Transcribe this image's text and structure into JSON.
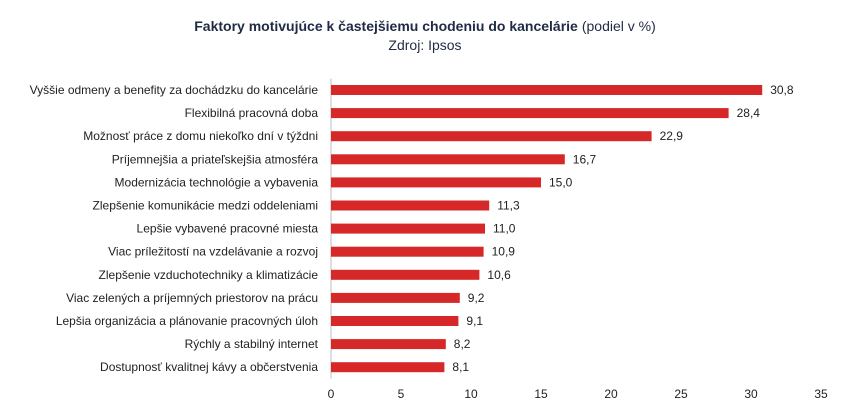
{
  "chart_data": {
    "type": "bar",
    "orientation": "horizontal",
    "title": "Faktory motivujúce k častejšiemu chodeniu do kancelárie",
    "title_suffix": "(podiel v %)",
    "subtitle": "Zdroj: Ipsos",
    "categories": [
      "Vyššie odmeny a benefity za dochádzku do kancelárie",
      "Flexibilná pracovná doba",
      "Možnosť práce z domu niekoľko dní v týždni",
      "Príjemnejšia a priateľskejšia atmosféra",
      "Modernizácia technológie a vybavenia",
      "Zlepšenie komunikácie medzi oddeleniami",
      "Lepšie vybavené pracovné miesta",
      "Viac príležitostí na vzdelávanie a rozvoj",
      "Zlepšenie vzduchotechniky a klimatizácie",
      "Viac zelených a príjemných priestorov na prácu",
      "Lepšia organizácia a plánovanie pracovných úloh",
      "Rýchly a stabilný internet",
      "Dostupnosť kvalitnej kávy a občerstvenia"
    ],
    "values": [
      30.8,
      28.4,
      22.9,
      16.7,
      15.0,
      11.3,
      11.0,
      10.9,
      10.6,
      9.2,
      9.1,
      8.2,
      8.1
    ],
    "value_labels": [
      "30,8",
      "28,4",
      "22,9",
      "16,7",
      "15,0",
      "11,3",
      "11,0",
      "10,9",
      "10,6",
      "9,2",
      "9,1",
      "8,2",
      "8,1"
    ],
    "xlim": [
      0,
      35
    ],
    "xticks": [
      0,
      5,
      10,
      15,
      20,
      25,
      30,
      35
    ],
    "grid": false,
    "bar_color": "#d62828"
  }
}
